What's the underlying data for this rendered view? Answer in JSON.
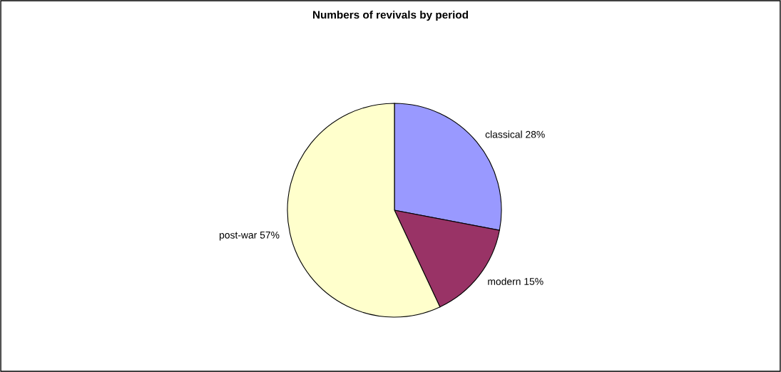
{
  "chart_data": {
    "type": "pie",
    "title": "Numbers of revivals by period",
    "categories": [
      "classical",
      "modern",
      "post-war"
    ],
    "values": [
      28,
      15,
      57
    ],
    "colors": [
      "#9999ff",
      "#993366",
      "#ffffcc"
    ],
    "value_labels": [
      "28%",
      "15%",
      "57%"
    ],
    "legend": false
  }
}
